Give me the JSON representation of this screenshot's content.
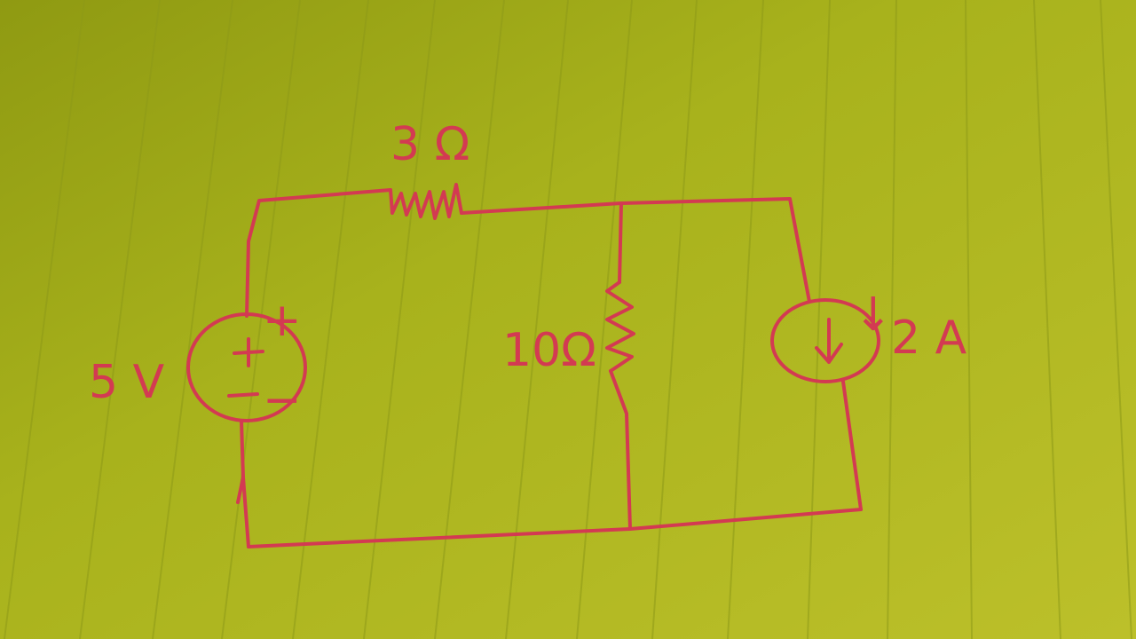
{
  "circuit": {
    "resistor_top_label": "3 Ω",
    "resistor_mid_label": "10Ω",
    "voltage_source_label": "5 V",
    "current_source_label": "2 A",
    "voltage_source_plus": "+",
    "voltage_source_minus": "−",
    "current_source_arrow": "↓"
  },
  "colors": {
    "paper": "#a9b21a",
    "ink": "#d33a52",
    "rule_lines": "#8e9a18"
  }
}
